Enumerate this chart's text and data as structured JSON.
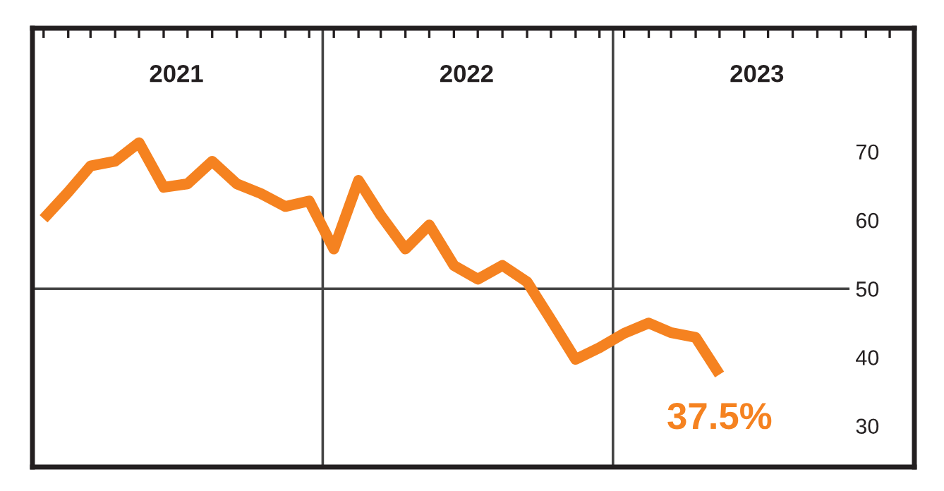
{
  "chart_data": {
    "type": "line",
    "x": [
      "2021-01-15",
      "2021-02-15",
      "2021-03-15",
      "2021-04-15",
      "2021-05-15",
      "2021-06-15",
      "2021-07-15",
      "2021-08-15",
      "2021-09-15",
      "2021-10-15",
      "2021-11-15",
      "2021-12-15",
      "2022-01-15",
      "2022-02-15",
      "2022-03-15",
      "2022-04-15",
      "2022-05-15",
      "2022-06-15",
      "2022-07-15",
      "2022-08-15",
      "2022-09-15",
      "2022-10-15",
      "2022-11-15",
      "2022-12-15",
      "2023-01-15",
      "2023-02-15",
      "2023-03-15",
      "2023-04-15",
      "2023-05-15"
    ],
    "series": [
      {
        "color": "#f58220",
        "values": [
          60.2,
          64.1,
          67.9,
          68.6,
          71.3,
          64.8,
          65.3,
          68.6,
          65.3,
          63.9,
          62.0,
          62.8,
          55.8,
          65.8,
          60.7,
          55.8,
          59.3,
          53.4,
          51.4,
          53.4,
          51.0,
          45.5,
          39.7,
          41.4,
          43.5,
          45.0,
          43.6,
          42.9,
          37.5
        ]
      }
    ],
    "xlim": [
      "2021-01-01",
      "2024-01-15"
    ],
    "xticks": [
      {
        "value": "2021-01-15",
        "label": null
      },
      {
        "value": "2021-02-15",
        "label": null
      },
      {
        "value": "2021-03-15",
        "label": null
      },
      {
        "value": "2021-04-15",
        "label": null
      },
      {
        "value": "2021-05-15",
        "label": null
      },
      {
        "value": "2021-06-15",
        "label": null
      },
      {
        "value": "2021-07-01",
        "label": "2021"
      },
      {
        "value": "2021-07-15",
        "label": null
      },
      {
        "value": "2021-08-15",
        "label": null
      },
      {
        "value": "2021-09-15",
        "label": null
      },
      {
        "value": "2021-10-15",
        "label": null
      },
      {
        "value": "2021-11-15",
        "label": null
      },
      {
        "value": "2021-12-15",
        "label": null
      },
      {
        "value": "2022-01-15",
        "label": null
      },
      {
        "value": "2022-02-15",
        "label": null
      },
      {
        "value": "2022-03-15",
        "label": null
      },
      {
        "value": "2022-04-15",
        "label": null
      },
      {
        "value": "2022-05-15",
        "label": null
      },
      {
        "value": "2022-06-15",
        "label": null
      },
      {
        "value": "2022-07-01",
        "label": "2022"
      },
      {
        "value": "2022-07-15",
        "label": null
      },
      {
        "value": "2022-08-15",
        "label": null
      },
      {
        "value": "2022-09-15",
        "label": null
      },
      {
        "value": "2022-10-15",
        "label": null
      },
      {
        "value": "2022-11-15",
        "label": null
      },
      {
        "value": "2022-12-15",
        "label": null
      },
      {
        "value": "2023-01-15",
        "label": null
      },
      {
        "value": "2023-02-15",
        "label": null
      },
      {
        "value": "2023-03-15",
        "label": null
      },
      {
        "value": "2023-04-15",
        "label": null
      },
      {
        "value": "2023-05-15",
        "label": null
      },
      {
        "value": "2023-06-15",
        "label": null
      },
      {
        "value": "2023-07-01",
        "label": "2023"
      },
      {
        "value": "2023-07-15",
        "label": null
      },
      {
        "value": "2023-08-15",
        "label": null
      },
      {
        "value": "2023-09-15",
        "label": null
      },
      {
        "value": "2023-10-15",
        "label": null
      },
      {
        "value": "2023-11-15",
        "label": null
      },
      {
        "value": "2023-12-15",
        "label": null
      }
    ],
    "ylim": [
      24,
      88
    ],
    "yticks": [
      30,
      40,
      50,
      60,
      70
    ],
    "ref_lines": [
      {
        "axis": "x",
        "value": "2022-01-01",
        "color": "#444444"
      },
      {
        "axis": "x",
        "value": "2023-01-01",
        "color": "#444444"
      },
      {
        "axis": "y",
        "value": 50,
        "color": "#444444"
      }
    ],
    "annotations": [
      {
        "text": "37.5%",
        "x": "2023-05-15",
        "y": 37.5
      }
    ],
    "grid": false,
    "legend": false,
    "marker": "none",
    "line_style": "solid"
  }
}
